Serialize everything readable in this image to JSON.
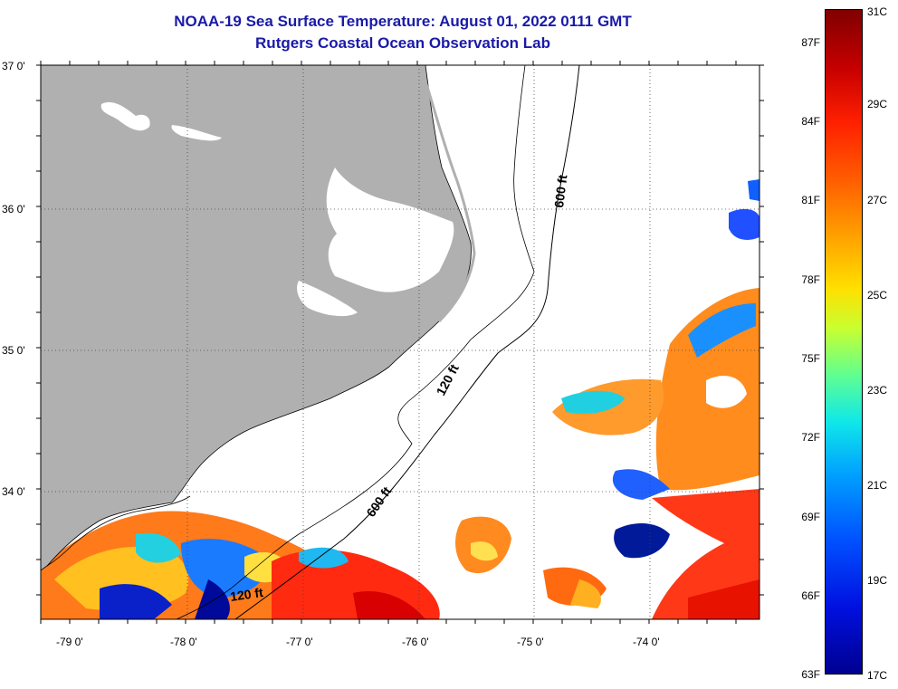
{
  "title": {
    "line1": "NOAA-19 Sea Surface Temperature:  August 01, 2022 0111 GMT",
    "line2": "Rutgers Coastal Ocean Observation Lab"
  },
  "axes": {
    "lat_labels": [
      "37 0'",
      "36 0'",
      "35 0'",
      "34 0'"
    ],
    "lon_labels": [
      "-79 0'",
      "-78 0'",
      "-77 0'",
      "-76 0'",
      "-75 0'",
      "-74 0'"
    ],
    "lat_range": [
      33.1,
      37.0
    ],
    "lon_range": [
      -79.3,
      -73.2
    ]
  },
  "contours": [
    {
      "label": "600 ft",
      "depth_ft": 600
    },
    {
      "label": "120 ft",
      "depth_ft": 120
    }
  ],
  "colorbar": {
    "fahrenheit_labels": [
      "87F",
      "84F",
      "81F",
      "78F",
      "75F",
      "72F",
      "69F",
      "66F",
      "63F"
    ],
    "celsius_labels": [
      "31C",
      "29C",
      "27C",
      "25C",
      "23C",
      "21C",
      "19C",
      "17C"
    ],
    "min_c": 17,
    "max_c": 31
  },
  "colors": {
    "land": "#b0b0b0",
    "title": "#1a1aa8",
    "grid": "#444444"
  }
}
